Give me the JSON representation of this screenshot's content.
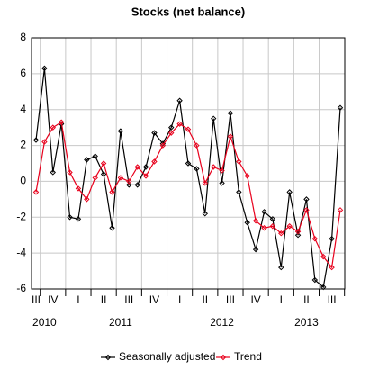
{
  "chart_data": {
    "type": "line",
    "title": "Stocks (net balance)",
    "categories": [
      "III",
      null,
      "IV",
      null,
      null,
      "I",
      null,
      null,
      "II",
      null,
      null,
      "III",
      null,
      null,
      "IV",
      null,
      null,
      "I",
      null,
      null,
      "II",
      null,
      null,
      "III",
      null,
      null,
      "IV",
      null,
      null,
      "I",
      null,
      null,
      "II",
      null,
      null,
      "III",
      null
    ],
    "years": [
      null,
      "2010",
      null,
      null,
      null,
      null,
      null,
      null,
      null,
      null,
      "2011",
      null,
      null,
      null,
      null,
      null,
      null,
      null,
      null,
      null,
      null,
      null,
      "2012",
      null,
      null,
      null,
      null,
      null,
      null,
      null,
      null,
      null,
      "2013",
      null,
      null,
      null,
      null
    ],
    "series": [
      {
        "name": "Seasonally adjusted",
        "color": "#000000",
        "values": [
          2.3,
          6.3,
          0.5,
          3.2,
          -2.0,
          -2.1,
          1.2,
          1.4,
          0.4,
          -2.6,
          2.8,
          -0.2,
          -0.2,
          0.8,
          2.7,
          2.1,
          3.0,
          4.5,
          1.0,
          0.7,
          -1.8,
          3.5,
          -0.1,
          3.8,
          -0.6,
          -2.3,
          -3.8,
          -1.7,
          -2.1,
          -4.8,
          -0.6,
          -3.0,
          -1.0,
          -5.5,
          -5.9,
          -3.2,
          4.1
        ]
      },
      {
        "name": "Trend",
        "color": "#e8001c",
        "values": [
          -0.6,
          2.2,
          3.0,
          3.3,
          0.5,
          -0.4,
          -1.0,
          0.2,
          1.0,
          -0.6,
          0.2,
          0.0,
          0.8,
          0.3,
          1.1,
          2.0,
          2.7,
          3.2,
          2.9,
          2.0,
          -0.1,
          0.8,
          0.6,
          2.5,
          1.1,
          0.3,
          -2.2,
          -2.6,
          -2.5,
          -2.9,
          -2.5,
          -2.8,
          -1.6,
          -3.2,
          -4.2,
          -4.8,
          -1.6
        ]
      }
    ],
    "ylim": [
      -6,
      8
    ],
    "yticks": [
      -6,
      -4,
      -2,
      0,
      2,
      4,
      6,
      8
    ],
    "grid": true,
    "legend": "bottom"
  }
}
